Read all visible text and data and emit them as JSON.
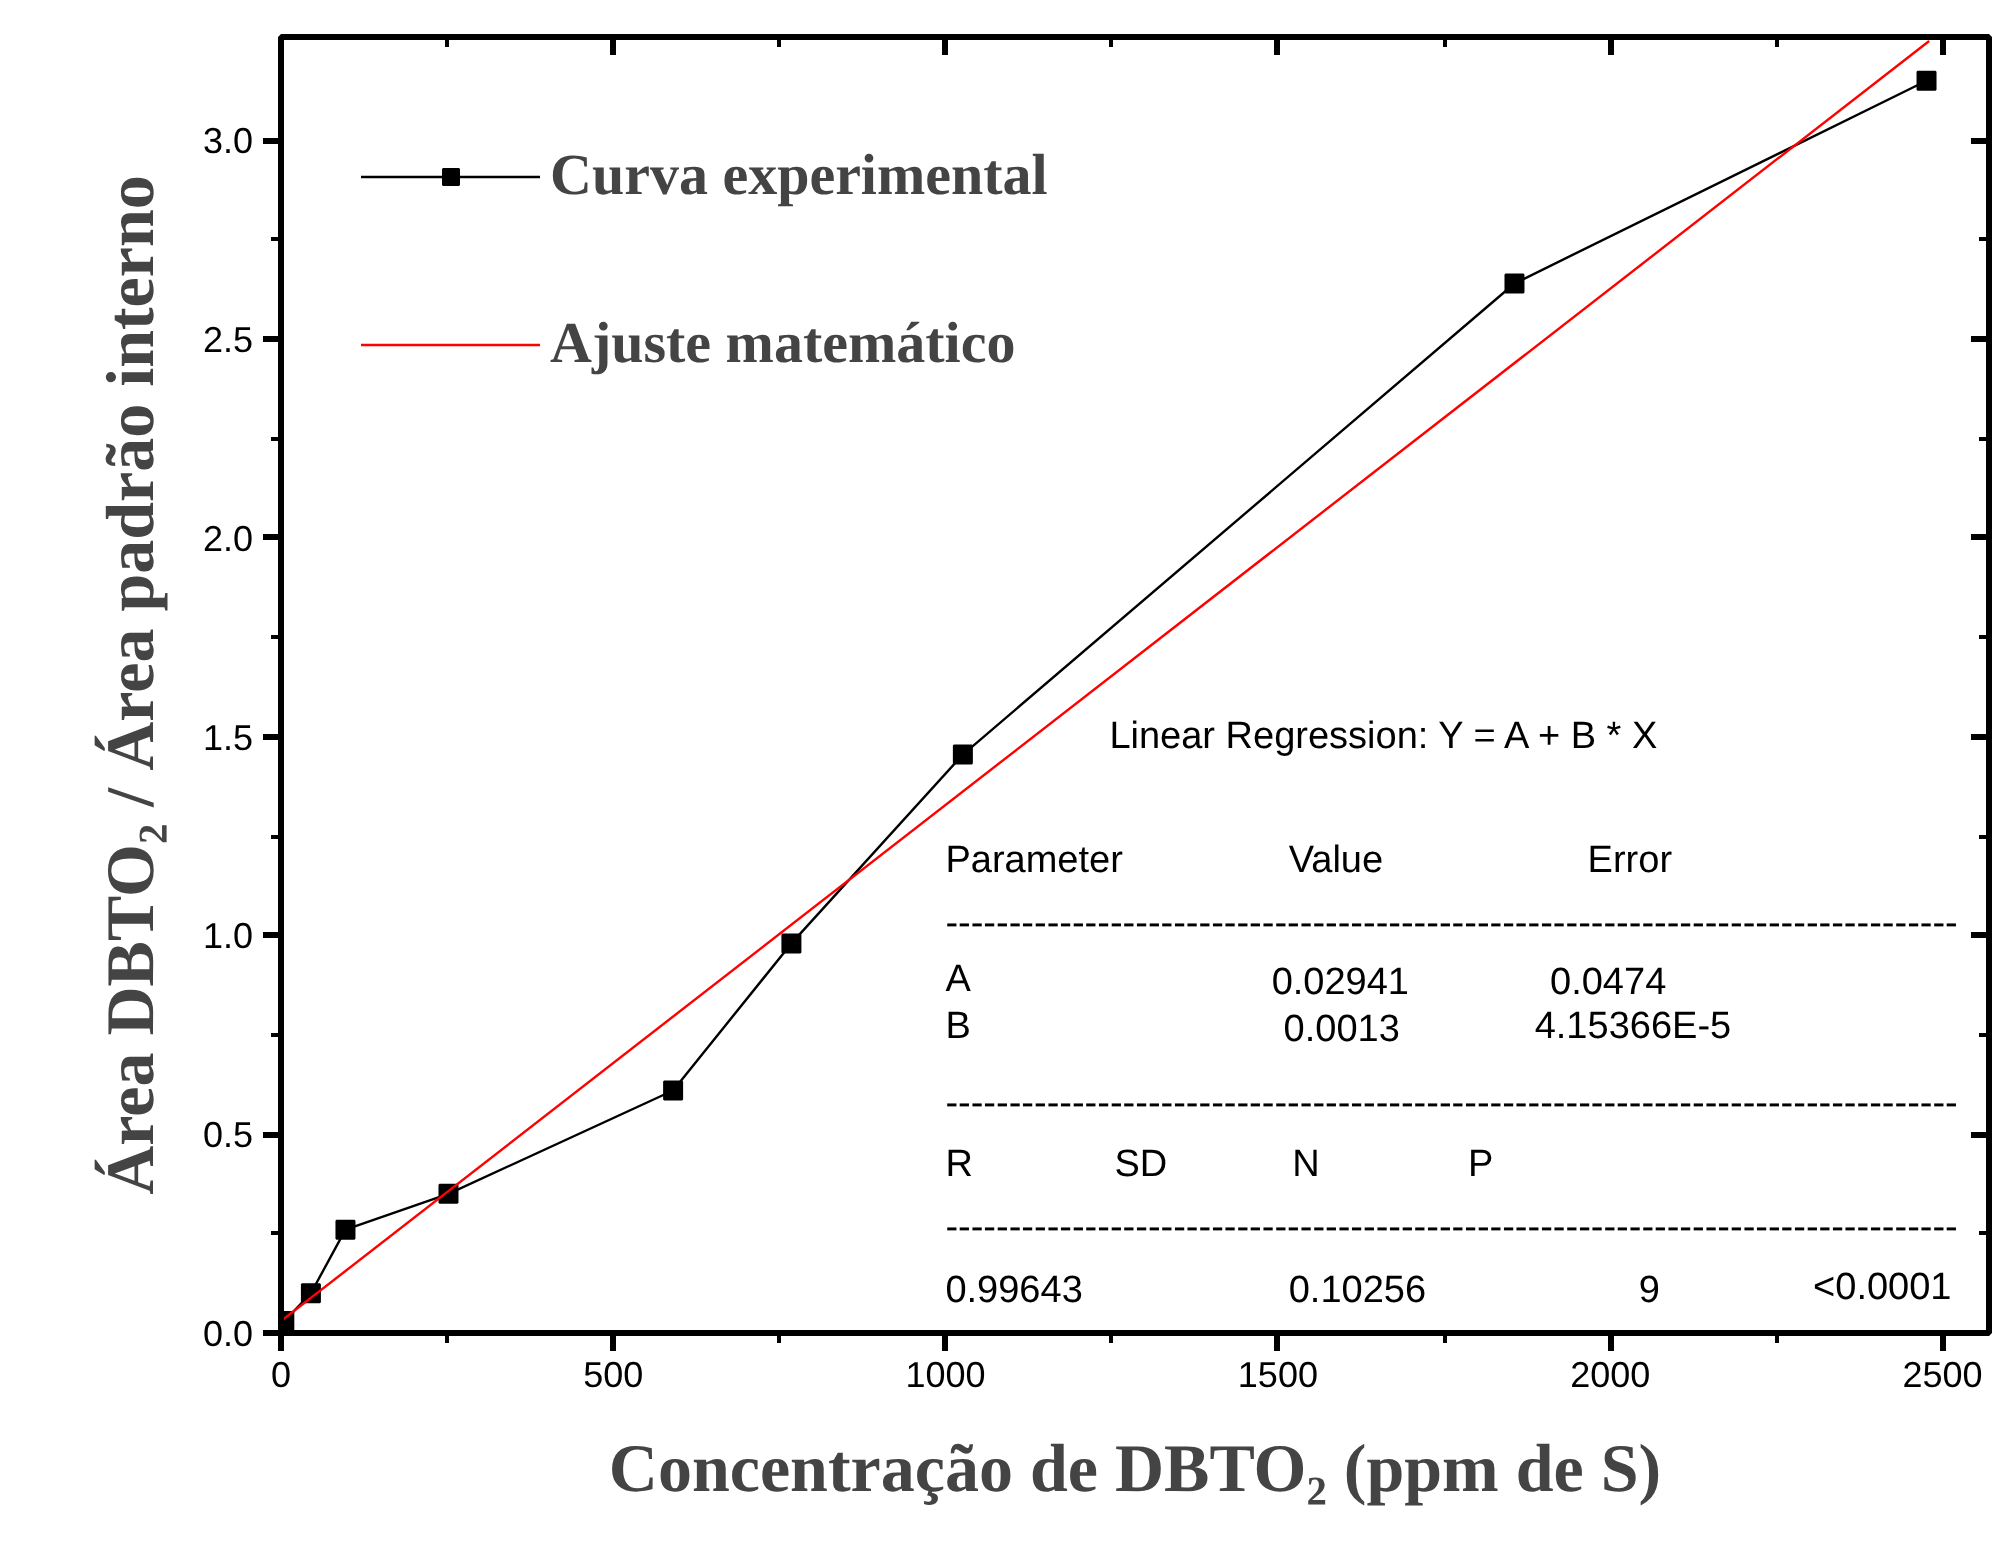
{
  "chart_data": {
    "type": "line",
    "xlabel": "Concentração de DBTO₂ (ppm de S)",
    "ylabel": "Área DBTO₂ / Área padrão interno",
    "xlim": [
      0,
      2570
    ],
    "ylim": [
      0,
      3.26
    ],
    "xticks": [
      0,
      500,
      1000,
      1500,
      2000,
      2500
    ],
    "yticks": [
      {
        "value": 0,
        "label": "0.0"
      },
      {
        "value": 0.5,
        "label": "0.5"
      },
      {
        "value": 1,
        "label": "1.0"
      },
      {
        "value": 1.5,
        "label": "1.5"
      },
      {
        "value": 2,
        "label": "2.0"
      },
      {
        "value": 2.5,
        "label": "2.5"
      },
      {
        "value": 3,
        "label": "3.0"
      }
    ],
    "legend": "top left",
    "grid": false,
    "series": [
      {
        "name": "Curva experimental",
        "color": "#000000",
        "marker": "square",
        "x": [
          5,
          45,
          97,
          252,
          590,
          768,
          1026,
          1856,
          2476
        ],
        "values": [
          0.03,
          0.1,
          0.26,
          0.35,
          0.61,
          0.98,
          1.455,
          2.64,
          3.15
        ]
      },
      {
        "name": "Ajuste matemático",
        "color": "#ff0000",
        "marker": "none",
        "x": [
          0,
          2480
        ],
        "values": [
          0.03,
          3.25
        ]
      }
    ],
    "annotations": [
      "Linear Regression: Y = A + B * X",
      "Parameter",
      "Value",
      "Error",
      "--------------------------------------------------------------------------------",
      "A",
      "0.02941",
      "0.0474",
      "B",
      "0.0013",
      "4.15366E-5",
      "--------------------------------------------------------------------------------",
      "R",
      "SD",
      "N",
      "P",
      "--------------------------------------------------------------------------------",
      "0.99643",
      "0.10256",
      "9",
      "<0.0001"
    ]
  }
}
